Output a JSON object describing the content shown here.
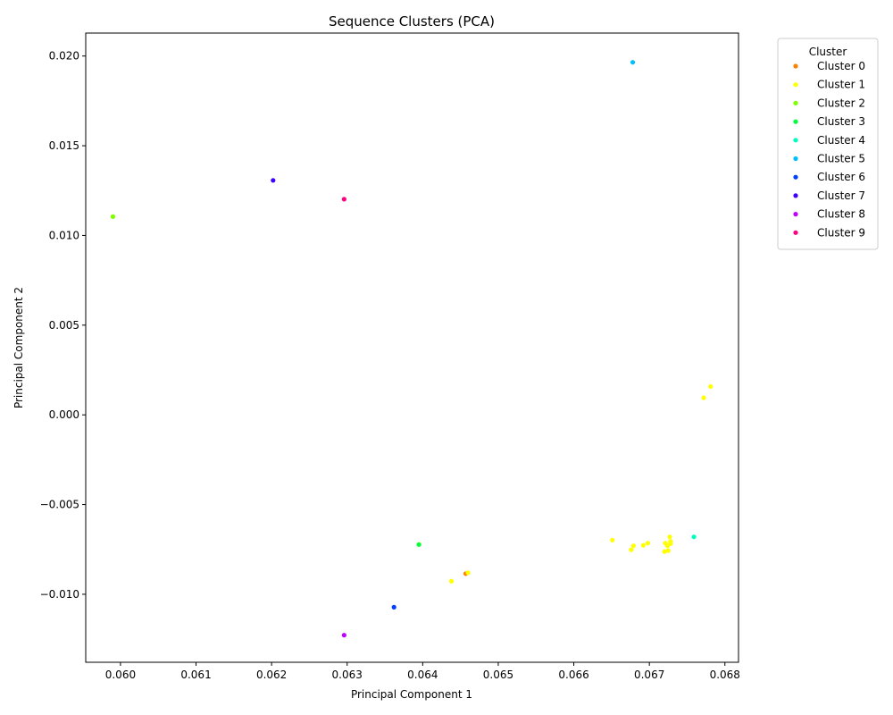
{
  "chart_data": {
    "type": "scatter",
    "title": "Sequence Clusters (PCA)",
    "xlabel": "Principal Component 1",
    "ylabel": "Principal Component 2",
    "xlim": [
      0.05954,
      0.06818
    ],
    "ylim": [
      -0.01379,
      0.02128
    ],
    "xticks": [
      0.06,
      0.061,
      0.062,
      0.063,
      0.064,
      0.065,
      0.066,
      0.067,
      0.068
    ],
    "xtick_labels": [
      "0.060",
      "0.061",
      "0.062",
      "0.063",
      "0.064",
      "0.065",
      "0.066",
      "0.067",
      "0.068"
    ],
    "yticks": [
      -0.01,
      -0.005,
      0.0,
      0.005,
      0.01,
      0.015,
      0.02
    ],
    "ytick_labels": [
      "−0.010",
      "−0.005",
      "0.000",
      "0.005",
      "0.010",
      "0.015",
      "0.020"
    ],
    "grid": false,
    "legend": {
      "title": "Cluster",
      "placement": "outside-top-right"
    },
    "series": [
      {
        "name": "Cluster 0",
        "color": "#ff7f00",
        "points": [
          [
            0.06457,
            -0.00885
          ]
        ]
      },
      {
        "name": "Cluster 1",
        "color": "#ffff00",
        "points": [
          [
            0.06781,
            0.00158
          ],
          [
            0.06772,
            0.00095
          ],
          [
            0.06651,
            -0.00698
          ],
          [
            0.06679,
            -0.0073
          ],
          [
            0.06676,
            -0.00752
          ],
          [
            0.06692,
            -0.00727
          ],
          [
            0.06698,
            -0.00715
          ],
          [
            0.06721,
            -0.00715
          ],
          [
            0.06727,
            -0.0068
          ],
          [
            0.06728,
            -0.00705
          ],
          [
            0.06728,
            -0.00718
          ],
          [
            0.06725,
            -0.00757
          ],
          [
            0.0672,
            -0.00762
          ],
          [
            0.06724,
            -0.0073
          ],
          [
            0.0646,
            -0.0088
          ],
          [
            0.06438,
            -0.00927
          ],
          [
            0.06395,
            -0.00722
          ]
        ]
      },
      {
        "name": "Cluster 2",
        "color": "#80ff00",
        "points": [
          [
            0.0599,
            0.01105
          ]
        ]
      },
      {
        "name": "Cluster 3",
        "color": "#00ff40",
        "points": [
          [
            0.06395,
            -0.00723
          ]
        ]
      },
      {
        "name": "Cluster 4",
        "color": "#00ffbf",
        "points": [
          [
            0.06759,
            -0.0068
          ]
        ]
      },
      {
        "name": "Cluster 5",
        "color": "#00bfff",
        "points": [
          [
            0.06678,
            0.01965
          ]
        ]
      },
      {
        "name": "Cluster 6",
        "color": "#0040ff",
        "points": [
          [
            0.06362,
            -0.01072
          ]
        ]
      },
      {
        "name": "Cluster 7",
        "color": "#4000ff",
        "points": [
          [
            0.06202,
            0.01307
          ]
        ]
      },
      {
        "name": "Cluster 8",
        "color": "#bf00ff",
        "points": [
          [
            0.06296,
            -0.01228
          ]
        ]
      },
      {
        "name": "Cluster 9",
        "color": "#ff0080",
        "points": [
          [
            0.06296,
            0.01202
          ]
        ]
      }
    ]
  }
}
